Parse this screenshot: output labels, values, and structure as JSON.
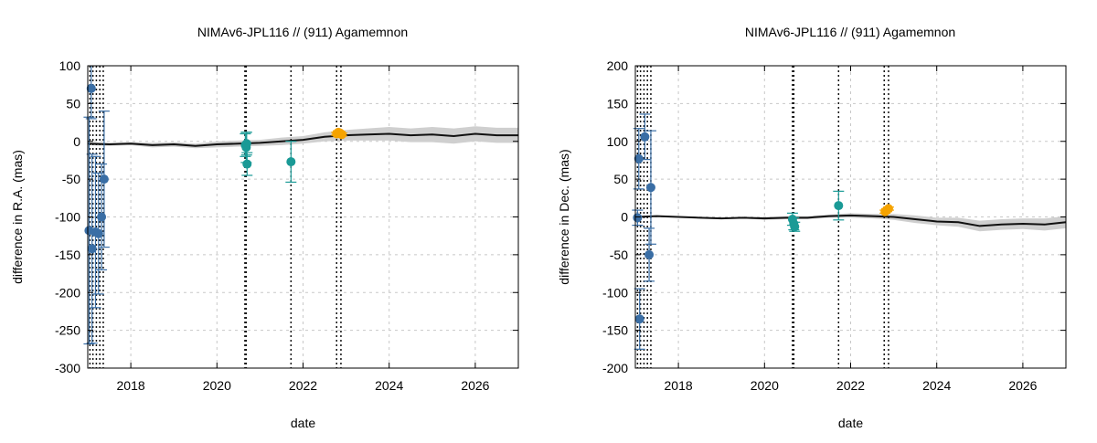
{
  "chart_data": [
    {
      "type": "scatter",
      "title": "NIMAv6-JPL116 // (911) Agamemnon",
      "xlabel": "date",
      "ylabel": "difference in R.A. (mas)",
      "xlim": [
        2017.0,
        2027.0
      ],
      "ylim": [
        -300,
        100
      ],
      "xticks": [
        2018,
        2020,
        2022,
        2024,
        2026
      ],
      "yticks": [
        -300,
        -250,
        -200,
        -150,
        -100,
        -50,
        0,
        50,
        100
      ],
      "grid": true,
      "vlines": [
        2017.05,
        2017.12,
        2017.2,
        2017.28,
        2017.36,
        2020.65,
        2020.68,
        2021.72,
        2022.78,
        2022.88
      ],
      "model": {
        "x": [
          2017.0,
          2017.5,
          2018.0,
          2018.5,
          2019.0,
          2019.5,
          2020.0,
          2020.5,
          2021.0,
          2021.5,
          2022.0,
          2022.5,
          2023.0,
          2023.5,
          2024.0,
          2024.5,
          2025.0,
          2025.5,
          2026.0,
          2026.5,
          2027.0
        ],
        "y": [
          -3,
          -4,
          -3,
          -5,
          -4,
          -6,
          -4,
          -3,
          -2,
          0,
          2,
          6,
          8,
          9,
          10,
          8,
          9,
          7,
          10,
          8,
          8
        ],
        "band": [
          2,
          2,
          2,
          3,
          3,
          3,
          4,
          4,
          4,
          5,
          5,
          6,
          7,
          8,
          9,
          9,
          10,
          10,
          10,
          10,
          10
        ]
      },
      "series": [
        {
          "color": "#3a6ea5",
          "points": [
            {
              "x": 2017.03,
              "y": -118,
              "err": 150
            },
            {
              "x": 2017.08,
              "y": 70,
              "err": 40
            },
            {
              "x": 2017.1,
              "y": -142,
              "err": 125
            },
            {
              "x": 2017.18,
              "y": -120,
              "err": 100
            },
            {
              "x": 2017.25,
              "y": -122,
              "err": 80
            },
            {
              "x": 2017.32,
              "y": -100,
              "err": 70
            },
            {
              "x": 2017.38,
              "y": -50,
              "err": 90
            }
          ]
        },
        {
          "color": "#1a9a96",
          "points": [
            {
              "x": 2020.66,
              "y": -5,
              "err": 15
            },
            {
              "x": 2020.68,
              "y": -8,
              "err": 20
            },
            {
              "x": 2020.69,
              "y": -3,
              "err": 15
            },
            {
              "x": 2020.7,
              "y": -30,
              "err": 15
            },
            {
              "x": 2021.72,
              "y": -27,
              "err": 27
            }
          ]
        },
        {
          "color": "#f5a300",
          "points": [
            {
              "x": 2022.78,
              "y": 10,
              "err": 2
            },
            {
              "x": 2022.82,
              "y": 12,
              "err": 2
            },
            {
              "x": 2022.86,
              "y": 11,
              "err": 2
            },
            {
              "x": 2022.9,
              "y": 9,
              "err": 2
            }
          ]
        }
      ]
    },
    {
      "type": "scatter",
      "title": "NIMAv6-JPL116 // (911) Agamemnon",
      "xlabel": "date",
      "ylabel": "difference in Dec. (mas)",
      "xlim": [
        2017.0,
        2027.0
      ],
      "ylim": [
        -200,
        200
      ],
      "xticks": [
        2018,
        2020,
        2022,
        2024,
        2026
      ],
      "yticks": [
        -200,
        -150,
        -100,
        -50,
        0,
        50,
        100,
        150,
        200
      ],
      "grid": true,
      "vlines": [
        2017.05,
        2017.12,
        2017.2,
        2017.28,
        2017.36,
        2020.65,
        2020.68,
        2021.72,
        2022.78,
        2022.88
      ],
      "model": {
        "x": [
          2017.0,
          2017.5,
          2018.0,
          2018.5,
          2019.0,
          2019.5,
          2020.0,
          2020.5,
          2021.0,
          2021.5,
          2022.0,
          2022.5,
          2023.0,
          2023.5,
          2024.0,
          2024.5,
          2025.0,
          2025.5,
          2026.0,
          2026.5,
          2027.0
        ],
        "y": [
          0,
          1,
          0,
          -1,
          -2,
          -1,
          -2,
          -1,
          -1,
          1,
          2,
          1,
          0,
          -3,
          -6,
          -7,
          -12,
          -10,
          -9,
          -10,
          -7
        ],
        "band": [
          1,
          1,
          1,
          1,
          1,
          1,
          2,
          2,
          2,
          2,
          3,
          3,
          4,
          5,
          5,
          6,
          7,
          7,
          7,
          8,
          8
        ]
      },
      "series": [
        {
          "color": "#3a6ea5",
          "points": [
            {
              "x": 2017.05,
              "y": -1,
              "err": 10
            },
            {
              "x": 2017.08,
              "y": 77,
              "err": 40
            },
            {
              "x": 2017.1,
              "y": -135,
              "err": 40
            },
            {
              "x": 2017.22,
              "y": 106,
              "err": 30
            },
            {
              "x": 2017.32,
              "y": -50,
              "err": 35
            },
            {
              "x": 2017.36,
              "y": 39,
              "err": 75
            }
          ]
        },
        {
          "color": "#1a9a96",
          "points": [
            {
              "x": 2020.65,
              "y": -3,
              "err": 8
            },
            {
              "x": 2020.68,
              "y": -9,
              "err": 8
            },
            {
              "x": 2020.7,
              "y": -13,
              "err": 6
            },
            {
              "x": 2021.72,
              "y": 15,
              "err": 19
            }
          ]
        },
        {
          "color": "#f5a300",
          "points": [
            {
              "x": 2022.8,
              "y": 7,
              "err": 2
            },
            {
              "x": 2022.84,
              "y": 9,
              "err": 2
            },
            {
              "x": 2022.88,
              "y": 11,
              "err": 2
            }
          ]
        }
      ]
    }
  ]
}
